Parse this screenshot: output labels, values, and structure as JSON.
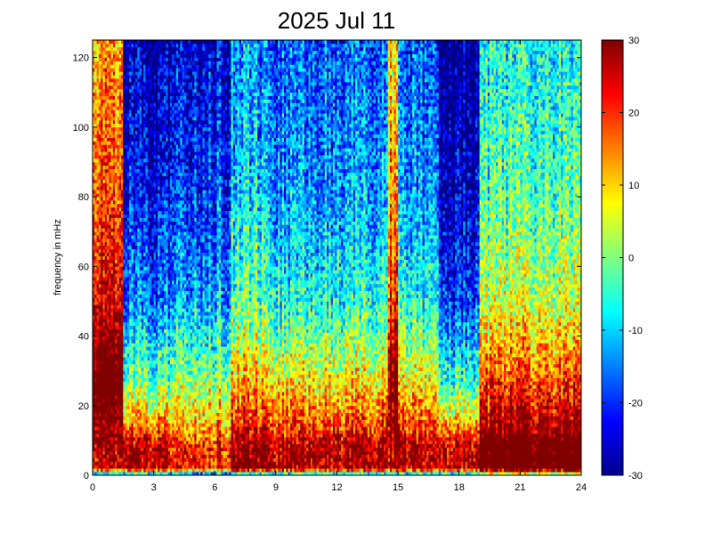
{
  "chart_data": {
    "type": "heatmap",
    "title": "2025 Jul 11",
    "xlabel": "",
    "ylabel": "frequency in mHz",
    "xlim": [
      0,
      24
    ],
    "ylim": [
      0,
      125
    ],
    "x_ticks": [
      0,
      3,
      6,
      9,
      12,
      15,
      18,
      21,
      24
    ],
    "y_ticks": [
      0,
      20,
      40,
      60,
      80,
      100,
      120
    ],
    "colorbar": {
      "range": [
        -30,
        30
      ],
      "ticks": [
        -30,
        -20,
        -10,
        0,
        10,
        20,
        30
      ],
      "tick_labels": [
        "-30",
        "-20",
        "-10",
        "0",
        "10",
        "20",
        "30"
      ],
      "colormap": "jet"
    },
    "time_bin_hours": 0.1,
    "freq_bin_mHz": 1.0,
    "pattern": {
      "base_by_frequency": [
        {
          "f": 0,
          "v": -18
        },
        {
          "f": 2,
          "v": 28
        },
        {
          "f": 8,
          "v": 28
        },
        {
          "f": 15,
          "v": 18
        },
        {
          "f": 30,
          "v": 6
        },
        {
          "f": 50,
          "v": -6
        },
        {
          "f": 80,
          "v": -13
        },
        {
          "f": 125,
          "v": -18
        }
      ],
      "hour_offsets": [
        {
          "from": 0.0,
          "to": 1.5,
          "offset": 32,
          "high_freq_only": true
        },
        {
          "from": 1.5,
          "to": 3.8,
          "offset": -10,
          "high_freq_only": true
        },
        {
          "from": 3.8,
          "to": 6.8,
          "offset": -6,
          "high_freq_only": false
        },
        {
          "from": 6.8,
          "to": 8.5,
          "offset": 4,
          "high_freq_only": false
        },
        {
          "from": 14.5,
          "to": 15.0,
          "offset": 26,
          "high_freq_only": true
        },
        {
          "from": 17.0,
          "to": 19.0,
          "offset": -12,
          "high_freq_only": true
        },
        {
          "from": 19.0,
          "to": 24.0,
          "offset": 10,
          "high_freq_only": false
        }
      ],
      "noise_amplitude": 9
    }
  }
}
